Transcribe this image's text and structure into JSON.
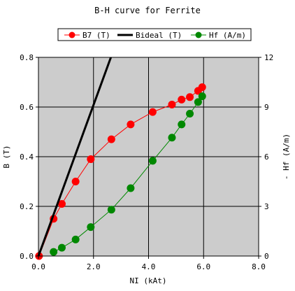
{
  "chart_data": {
    "type": "line",
    "title": "B-H curve for Ferrite",
    "xlabel": "NI (kAt)",
    "ylabel": "B (T)",
    "y2label": "- Hf (A/m)",
    "xlim": [
      0,
      8
    ],
    "ylim": [
      0,
      0.8
    ],
    "y2lim": [
      0,
      12
    ],
    "xticks": [
      "0.0",
      "2.0",
      "4.0",
      "6.0",
      "8.0"
    ],
    "xtick_values": [
      0,
      2,
      4,
      6,
      8
    ],
    "yticks": [
      "0.0",
      "0.2",
      "0.4",
      "0.6",
      "0.8"
    ],
    "ytick_values": [
      0,
      0.2,
      0.4,
      0.6,
      0.8
    ],
    "y2ticks": [
      "0",
      "3",
      "6",
      "9",
      "12"
    ],
    "y2tick_values": [
      0,
      3,
      6,
      9,
      12
    ],
    "grid": true,
    "plot_background": "#cccccc",
    "legend_position": "top",
    "series": [
      {
        "name": "B7 (T)",
        "color": "#ff0000",
        "axis": "left",
        "markers": true,
        "x": [
          0.02,
          0.55,
          0.85,
          1.35,
          1.9,
          2.65,
          3.35,
          4.15,
          4.85,
          5.2,
          5.5,
          5.8,
          5.95
        ],
        "y": [
          0.0,
          0.15,
          0.21,
          0.3,
          0.39,
          0.47,
          0.53,
          0.58,
          0.61,
          0.63,
          0.64,
          0.665,
          0.68
        ]
      },
      {
        "name": "Bideal (T)",
        "color": "#000000",
        "axis": "left",
        "markers": false,
        "x": [
          0,
          2.63
        ],
        "y": [
          0,
          0.8
        ]
      },
      {
        "name": "Hf (A/m)",
        "color": "#008800",
        "axis": "right",
        "markers": true,
        "x": [
          0.55,
          0.85,
          1.35,
          1.9,
          2.65,
          3.35,
          4.15,
          4.85,
          5.2,
          5.5,
          5.8,
          5.95
        ],
        "y": [
          0.25,
          0.5,
          1.0,
          1.75,
          2.8,
          4.1,
          5.75,
          7.15,
          7.95,
          8.6,
          9.3,
          9.65
        ]
      }
    ]
  }
}
